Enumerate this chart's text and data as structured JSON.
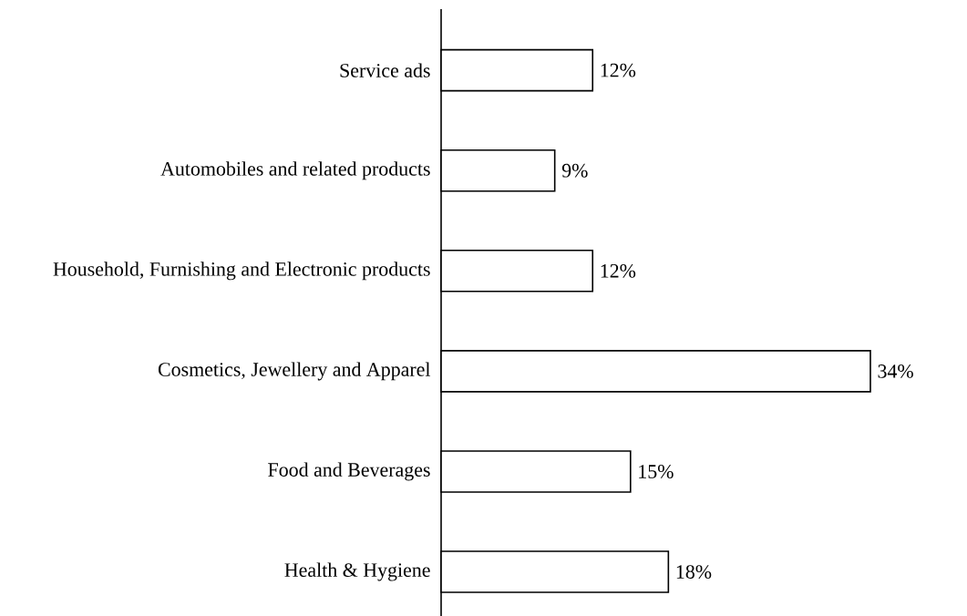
{
  "chart_data": {
    "type": "bar",
    "orientation": "horizontal",
    "categories": [
      "Service ads",
      "Automobiles and related products",
      "Household, Furnishing and Electronic products",
      "Cosmetics, Jewellery and Apparel",
      "Food and Beverages",
      "Health & Hygiene"
    ],
    "values": [
      12,
      9,
      12,
      34,
      15,
      18
    ],
    "value_labels": [
      "12%",
      "9%",
      "12%",
      "34%",
      "15%",
      "18%"
    ],
    "color": "#ffffff"
  }
}
